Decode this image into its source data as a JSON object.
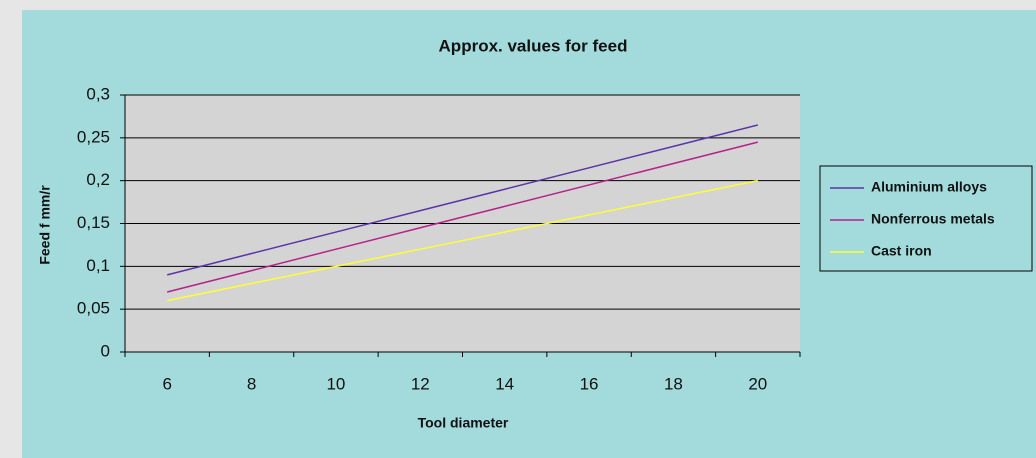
{
  "chart_data": {
    "type": "line",
    "title": "Approx. values for feed",
    "x_label": "Tool diameter",
    "y_label": "Feed f mm/r",
    "categories": [
      "6",
      "8",
      "10",
      "12",
      "14",
      "16",
      "18",
      "20"
    ],
    "series": [
      {
        "name": "Aluminium alloys",
        "color": "#5a34a8",
        "values": [
          0.09,
          0.115,
          0.14,
          0.165,
          0.19,
          0.215,
          0.24,
          0.265
        ]
      },
      {
        "name": "Nonferrous metals",
        "color": "#b5218c",
        "values": [
          0.07,
          0.095,
          0.12,
          0.145,
          0.17,
          0.195,
          0.22,
          0.245
        ]
      },
      {
        "name": "Cast iron",
        "color": "#ffff33",
        "values": [
          0.06,
          0.08,
          0.1,
          0.12,
          0.14,
          0.16,
          0.18,
          0.2
        ]
      }
    ],
    "ylim": [
      0,
      0.3
    ],
    "yticks": [
      0,
      {
        "value": 0.05,
        "label": "0,05"
      },
      {
        "value": 0.1,
        "label": "0,1"
      },
      {
        "value": 0.15,
        "label": "0,15"
      },
      {
        "value": 0.2,
        "label": "0,2"
      },
      {
        "value": 0.25,
        "label": "0,25"
      },
      {
        "value": 0.3,
        "label": "0,3"
      }
    ],
    "grid": true,
    "legend": "right"
  }
}
